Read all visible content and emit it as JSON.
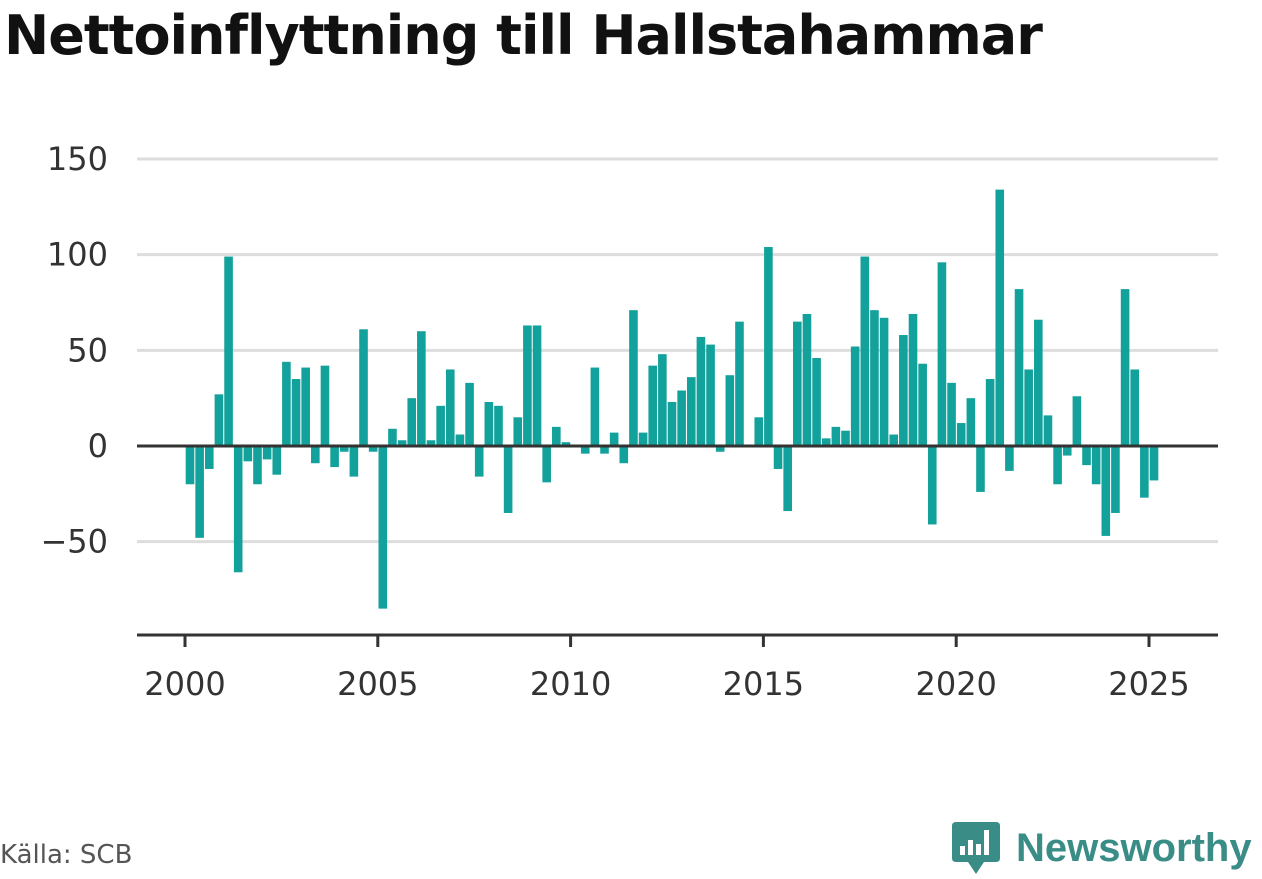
{
  "title": "Nettoinflyttning till Hallstahammar",
  "source": "Källa: SCB",
  "brand": "Newsworthy",
  "colors": {
    "bar": "#13a19b",
    "grid": "#dddddd",
    "axis": "#333333",
    "brand": "#3a8d87"
  },
  "chart_data": {
    "type": "bar",
    "title": "Nettoinflyttning till Hallstahammar",
    "xlabel": "",
    "ylabel": "",
    "ylim": [
      -99,
      155
    ],
    "yticks": [
      150,
      100,
      50,
      0,
      -50
    ],
    "ytick_labels": [
      "150",
      "100",
      "50",
      "0",
      "−50"
    ],
    "xticks": [
      2000,
      2005,
      2010,
      2015,
      2020,
      2025
    ],
    "xtick_labels": [
      "2000",
      "2005",
      "2010",
      "2015",
      "2020",
      "2025"
    ],
    "x_start": 2000.0,
    "x_step": 0.25,
    "grid": true,
    "legend": "none",
    "series": [
      {
        "values": [
          -20,
          -48,
          -12,
          27,
          99,
          -66,
          -8,
          -20,
          -7,
          -15,
          44,
          35,
          41,
          -9,
          42,
          -11,
          -3,
          -16,
          61,
          -3,
          -85,
          9,
          3,
          25,
          60,
          3,
          21,
          40,
          6,
          33,
          -16,
          23,
          21,
          -35,
          15,
          63,
          63,
          -19,
          10,
          2,
          0,
          -4,
          41,
          -4,
          7,
          -9,
          71,
          7,
          42,
          48,
          23,
          29,
          36,
          57,
          53,
          -3,
          37,
          65,
          0,
          15,
          104,
          -12,
          -34,
          65,
          69,
          46,
          4,
          10,
          8,
          52,
          99,
          71,
          67,
          6,
          58,
          69,
          43,
          -41,
          96,
          33,
          12,
          25,
          -24,
          35,
          134,
          -13,
          82,
          40,
          66,
          16,
          -20,
          -5,
          26,
          -10,
          -20,
          -47,
          -35,
          82,
          40,
          -27,
          -18
        ]
      }
    ]
  }
}
